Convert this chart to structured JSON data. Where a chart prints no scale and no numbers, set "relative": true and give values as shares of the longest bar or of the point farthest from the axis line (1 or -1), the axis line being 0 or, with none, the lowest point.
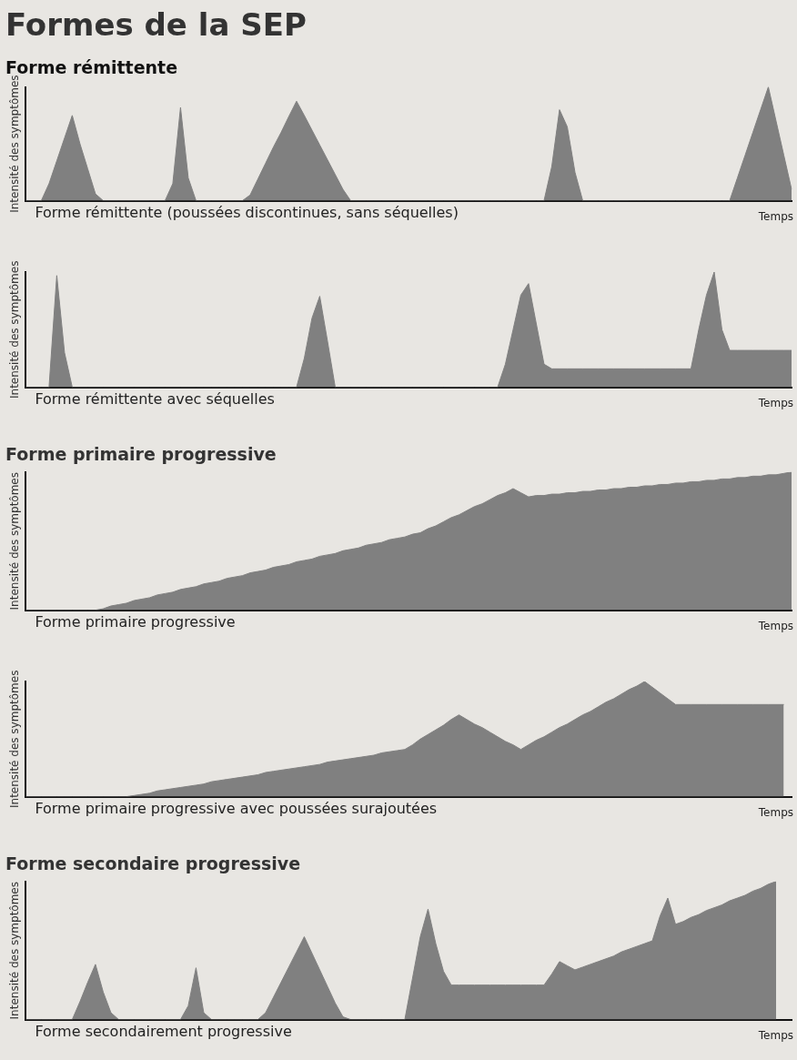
{
  "chart_data": [
    {
      "type": "area",
      "title": "Formes de la SEP",
      "subtitle": "Forme rémittente",
      "ylabel": "Intensité des symptômes",
      "xlabel": "Temps",
      "annotations": [
        "Forme rémittente (poussées discontinues, sans séquelles)"
      ],
      "relative": true,
      "categories": [
        null,
        null,
        null,
        null,
        null,
        null,
        null,
        null,
        null,
        null,
        null,
        null,
        null,
        null,
        null,
        null,
        null,
        null,
        null,
        null,
        null,
        null,
        null,
        null,
        null,
        null,
        null,
        null,
        null,
        null,
        null,
        null,
        null,
        null,
        null,
        null,
        null,
        null,
        null,
        null,
        null,
        null,
        null,
        null,
        null,
        null,
        null,
        null,
        null,
        null,
        null,
        null,
        null,
        null,
        null,
        null,
        null,
        null,
        null,
        null,
        null,
        null,
        null,
        null,
        null,
        null,
        null,
        null,
        null,
        null,
        null,
        null,
        null,
        null,
        null,
        null,
        null,
        null,
        null,
        null,
        null,
        null,
        null,
        null,
        null,
        null,
        null,
        null,
        null,
        null,
        null,
        null,
        null,
        null,
        null,
        null,
        null,
        null,
        null,
        null
      ],
      "series": [
        {
          "color": "#808080",
          "values": [
            0,
            0,
            0,
            0.15,
            0.35,
            0.55,
            0.75,
            0.5,
            0.28,
            0.06,
            0,
            0,
            0,
            0,
            0,
            0,
            0,
            0,
            0,
            0.15,
            0.82,
            0.2,
            0,
            0,
            0,
            0,
            0,
            0,
            0,
            0.05,
            0.19,
            0.33,
            0.47,
            0.6,
            0.74,
            0.875,
            0.75,
            0.62,
            0.49,
            0.36,
            0.23,
            0.1,
            0,
            0,
            0,
            0,
            0,
            0,
            0,
            0,
            0,
            0,
            0,
            0,
            0,
            0,
            0,
            0,
            0,
            0,
            0,
            0,
            0,
            0,
            0,
            0,
            0,
            0,
            0.3,
            0.8,
            0.65,
            0.25,
            0,
            0,
            0,
            0,
            0,
            0,
            0,
            0,
            0,
            0,
            0,
            0,
            0,
            0,
            0,
            0,
            0,
            0,
            0,
            0,
            0.2,
            0.4,
            0.6,
            0.8,
            1,
            0.7,
            0.4,
            0.1
          ]
        }
      ]
    },
    {
      "type": "area",
      "ylabel": "Intensité des symptômes",
      "xlabel": "Temps",
      "annotations": [
        "Forme rémittente avec séquelles"
      ],
      "relative": true,
      "categories": [
        null,
        null,
        null,
        null,
        null,
        null,
        null,
        null,
        null,
        null,
        null,
        null,
        null,
        null,
        null,
        null,
        null,
        null,
        null,
        null,
        null,
        null,
        null,
        null,
        null,
        null,
        null,
        null,
        null,
        null,
        null,
        null,
        null,
        null,
        null,
        null,
        null,
        null,
        null,
        null,
        null,
        null,
        null,
        null,
        null,
        null,
        null,
        null,
        null,
        null,
        null,
        null,
        null,
        null,
        null,
        null,
        null,
        null,
        null,
        null,
        null,
        null,
        null,
        null,
        null,
        null,
        null,
        null,
        null,
        null,
        null,
        null,
        null,
        null,
        null,
        null,
        null,
        null,
        null,
        null,
        null,
        null,
        null,
        null,
        null,
        null,
        null,
        null,
        null,
        null,
        null,
        null,
        null,
        null,
        null,
        null,
        null,
        null,
        null,
        null
      ],
      "series": [
        {
          "color": "#808080",
          "values": [
            0,
            0,
            0,
            0,
            0.97,
            0.3,
            0,
            0,
            0,
            0,
            0,
            0,
            0,
            0,
            0,
            0,
            0,
            0,
            0,
            0,
            0,
            0,
            0,
            0,
            0,
            0,
            0,
            0,
            0,
            0,
            0,
            0,
            0,
            0,
            0,
            0,
            0.25,
            0.6,
            0.79,
            0.4,
            0,
            0,
            0,
            0,
            0,
            0,
            0,
            0,
            0,
            0,
            0,
            0,
            0,
            0,
            0,
            0,
            0,
            0,
            0,
            0,
            0,
            0,
            0.2,
            0.5,
            0.8,
            0.9,
            0.55,
            0.2,
            0.16,
            0.16,
            0.16,
            0.16,
            0.16,
            0.16,
            0.16,
            0.16,
            0.16,
            0.16,
            0.16,
            0.16,
            0.16,
            0.16,
            0.16,
            0.16,
            0.16,
            0.16,
            0.16,
            0.5,
            0.8,
            1,
            0.5,
            0.32,
            0.32,
            0.32,
            0.32,
            0.32,
            0.32,
            0.32,
            0.32,
            0.32
          ]
        }
      ]
    },
    {
      "type": "area",
      "title": "Forme primaire progressive",
      "ylabel": "Intensité des symptômes",
      "xlabel": "Temps",
      "annotations": [
        "Forme primaire progressive"
      ],
      "relative": true,
      "categories": [
        null,
        null,
        null,
        null,
        null,
        null,
        null,
        null,
        null,
        null,
        null,
        null,
        null,
        null,
        null,
        null,
        null,
        null,
        null,
        null,
        null,
        null,
        null,
        null,
        null,
        null,
        null,
        null,
        null,
        null,
        null,
        null,
        null,
        null,
        null,
        null,
        null,
        null,
        null,
        null,
        null,
        null,
        null,
        null,
        null,
        null,
        null,
        null,
        null,
        null,
        null,
        null,
        null,
        null,
        null,
        null,
        null,
        null,
        null,
        null,
        null,
        null,
        null,
        null,
        null,
        null,
        null,
        null,
        null,
        null,
        null,
        null,
        null,
        null,
        null,
        null,
        null,
        null,
        null,
        null,
        null,
        null,
        null,
        null,
        null,
        null,
        null,
        null,
        null,
        null,
        null,
        null,
        null,
        null,
        null,
        null,
        null,
        null,
        null,
        null
      ],
      "series": [
        {
          "color": "#808080",
          "values": [
            0,
            0,
            0,
            0,
            0,
            0,
            0,
            0,
            0,
            0,
            0.01,
            0.03,
            0.04,
            0.05,
            0.07,
            0.08,
            0.09,
            0.11,
            0.12,
            0.13,
            0.15,
            0.16,
            0.17,
            0.19,
            0.2,
            0.21,
            0.23,
            0.24,
            0.25,
            0.27,
            0.28,
            0.29,
            0.31,
            0.32,
            0.33,
            0.35,
            0.36,
            0.37,
            0.39,
            0.4,
            0.41,
            0.43,
            0.44,
            0.45,
            0.47,
            0.48,
            0.49,
            0.51,
            0.52,
            0.53,
            0.55,
            0.56,
            0.59,
            0.61,
            0.64,
            0.67,
            0.69,
            0.72,
            0.75,
            0.77,
            0.8,
            0.83,
            0.85,
            0.88,
            0.85,
            0.82,
            0.83,
            0.83,
            0.84,
            0.84,
            0.85,
            0.85,
            0.86,
            0.86,
            0.87,
            0.87,
            0.88,
            0.88,
            0.89,
            0.89,
            0.9,
            0.9,
            0.91,
            0.91,
            0.92,
            0.92,
            0.93,
            0.93,
            0.94,
            0.94,
            0.95,
            0.95,
            0.96,
            0.96,
            0.97,
            0.97,
            0.98,
            0.98,
            0.99,
            1
          ]
        }
      ]
    },
    {
      "type": "area",
      "ylabel": "Intensité des symptômes",
      "xlabel": "Temps",
      "annotations": [
        "Forme primaire progressive avec poussées surajoutées"
      ],
      "relative": true,
      "categories": [
        null,
        null,
        null,
        null,
        null,
        null,
        null,
        null,
        null,
        null,
        null,
        null,
        null,
        null,
        null,
        null,
        null,
        null,
        null,
        null,
        null,
        null,
        null,
        null,
        null,
        null,
        null,
        null,
        null,
        null,
        null,
        null,
        null,
        null,
        null,
        null,
        null,
        null,
        null,
        null,
        null,
        null,
        null,
        null,
        null,
        null,
        null,
        null,
        null,
        null,
        null,
        null,
        null,
        null,
        null,
        null,
        null,
        null,
        null,
        null,
        null,
        null,
        null,
        null,
        null,
        null,
        null,
        null,
        null,
        null,
        null,
        null,
        null,
        null,
        null,
        null,
        null,
        null,
        null,
        null,
        null,
        null,
        null,
        null,
        null,
        null,
        null,
        null,
        null,
        null,
        null,
        null,
        null,
        null,
        null,
        null,
        null,
        null,
        null,
        null
      ],
      "series": [
        {
          "color": "#808080",
          "values": [
            0,
            0,
            0,
            0,
            0,
            0,
            0,
            0,
            0,
            0,
            0,
            0,
            0,
            0,
            0.01,
            0.02,
            0.03,
            0.05,
            0.06,
            0.07,
            0.08,
            0.09,
            0.1,
            0.11,
            0.13,
            0.14,
            0.15,
            0.16,
            0.17,
            0.18,
            0.19,
            0.21,
            0.22,
            0.23,
            0.24,
            0.25,
            0.26,
            0.27,
            0.28,
            0.3,
            0.31,
            0.32,
            0.33,
            0.34,
            0.35,
            0.36,
            0.38,
            0.39,
            0.4,
            0.41,
            0.45,
            0.5,
            0.54,
            0.58,
            0.62,
            0.67,
            0.71,
            0.67,
            0.63,
            0.6,
            0.56,
            0.52,
            0.48,
            0.45,
            0.41,
            0.45,
            0.49,
            0.52,
            0.56,
            0.6,
            0.63,
            0.67,
            0.71,
            0.74,
            0.78,
            0.82,
            0.85,
            0.89,
            0.93,
            0.96,
            1,
            0.95,
            0.9,
            0.85,
            0.8,
            0.8,
            0.8,
            0.8,
            0.8,
            0.8,
            0.8,
            0.8,
            0.8,
            0.8,
            0.8,
            0.8,
            0.8,
            0.8,
            0.8,
            null
          ]
        }
      ]
    },
    {
      "type": "area",
      "title": "Forme secondaire progressive",
      "ylabel": "Intensité des symptômes",
      "xlabel": "Temps",
      "annotations": [
        "Forme secondairement progressive"
      ],
      "relative": true,
      "categories": [
        null,
        null,
        null,
        null,
        null,
        null,
        null,
        null,
        null,
        null,
        null,
        null,
        null,
        null,
        null,
        null,
        null,
        null,
        null,
        null,
        null,
        null,
        null,
        null,
        null,
        null,
        null,
        null,
        null,
        null,
        null,
        null,
        null,
        null,
        null,
        null,
        null,
        null,
        null,
        null,
        null,
        null,
        null,
        null,
        null,
        null,
        null,
        null,
        null,
        null,
        null,
        null,
        null,
        null,
        null,
        null,
        null,
        null,
        null,
        null,
        null,
        null,
        null,
        null,
        null,
        null,
        null,
        null,
        null,
        null,
        null,
        null,
        null,
        null,
        null,
        null,
        null,
        null,
        null,
        null,
        null,
        null,
        null,
        null,
        null,
        null,
        null,
        null,
        null,
        null,
        null,
        null,
        null,
        null,
        null,
        null,
        null,
        null,
        null,
        null
      ],
      "series": [
        {
          "color": "#808080",
          "values": [
            0,
            0,
            0,
            0,
            0,
            0,
            0,
            0.13,
            0.27,
            0.4,
            0.2,
            0.05,
            0,
            0,
            0,
            0,
            0,
            0,
            0,
            0,
            0,
            0.1,
            0.375,
            0.05,
            0,
            0,
            0,
            0,
            0,
            0,
            0,
            0.05,
            0.16,
            0.27,
            0.38,
            0.49,
            0.6,
            0.48,
            0.36,
            0.24,
            0.12,
            0.02,
            0,
            0,
            0,
            0,
            0,
            0,
            0,
            0,
            0.3,
            0.6,
            0.8,
            0.55,
            0.35,
            0.25,
            0.25,
            0.25,
            0.25,
            0.25,
            0.25,
            0.25,
            0.25,
            0.25,
            0.25,
            0.25,
            0.25,
            0.25,
            0.33,
            0.42,
            0.39,
            0.36,
            0.38,
            0.4,
            0.42,
            0.44,
            0.46,
            0.49,
            0.51,
            0.53,
            0.55,
            0.57,
            0.75,
            0.88,
            0.69,
            0.71,
            0.74,
            0.76,
            0.79,
            0.81,
            0.83,
            0.86,
            0.88,
            0.9,
            0.93,
            0.95,
            0.98,
            1,
            null,
            null
          ]
        }
      ]
    }
  ]
}
